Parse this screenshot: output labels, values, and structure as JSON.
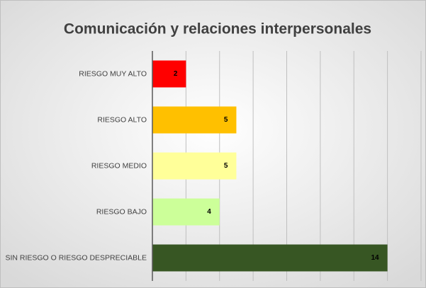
{
  "chart_data": {
    "type": "bar",
    "orientation": "horizontal",
    "title": "Comunicación y relaciones interpersonales",
    "categories": [
      "RIESGO MUY ALTO",
      "RIESGO ALTO",
      "RIESGO MEDIO",
      "RIESGO BAJO",
      "SIN RIESGO O RIESGO DESPRECIABLE"
    ],
    "values": [
      2,
      5,
      5,
      4,
      14
    ],
    "colors": [
      "#ff0000",
      "#ffc000",
      "#ffff99",
      "#ccff99",
      "#375623"
    ],
    "xlim": [
      0,
      16
    ],
    "xticks": [
      0,
      2,
      4,
      6,
      8,
      10,
      12,
      14,
      16
    ],
    "grid": true
  }
}
